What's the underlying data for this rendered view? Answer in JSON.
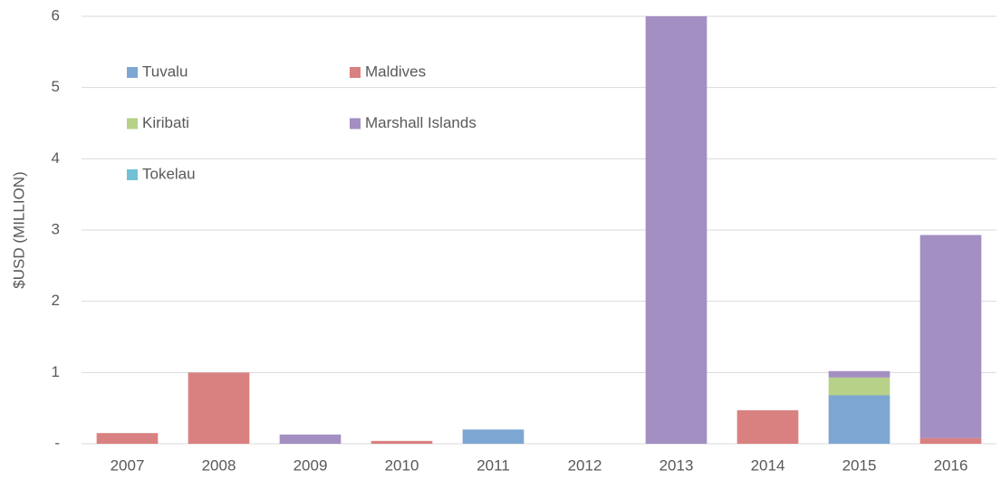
{
  "chart_data": {
    "type": "stacked-bar",
    "y_label": "$USD (MILLION)",
    "categories": [
      "2007",
      "2008",
      "2009",
      "2010",
      "2011",
      "2012",
      "2013",
      "2014",
      "2015",
      "2016"
    ],
    "series": [
      {
        "name": "Tuvalu",
        "color": "#7ea6d3",
        "values": [
          0,
          0,
          0,
          0,
          0.2,
          0,
          0,
          0,
          0.68,
          0
        ]
      },
      {
        "name": "Maldives",
        "color": "#d98080",
        "values": [
          0.15,
          1.0,
          0,
          0.04,
          0,
          0,
          0,
          0.47,
          0,
          0.08
        ]
      },
      {
        "name": "Kiribati",
        "color": "#b7d189",
        "values": [
          0,
          0,
          0,
          0,
          0,
          0,
          0,
          0,
          0.25,
          0
        ]
      },
      {
        "name": "Marshall Islands",
        "color": "#a38fc2",
        "values": [
          0,
          0,
          0.13,
          0,
          0,
          0,
          6.0,
          0,
          0.09,
          2.85
        ]
      },
      {
        "name": "Tokelau",
        "color": "#72c1d6",
        "values": [
          0,
          0,
          0,
          0,
          0,
          0,
          0,
          0,
          0,
          0
        ]
      }
    ],
    "ylim": [
      0,
      6
    ],
    "yticks": [
      {
        "value": 0,
        "label": "-"
      },
      1,
      2,
      3,
      4,
      5,
      6
    ],
    "grid": true,
    "legend_position": "upper left"
  }
}
